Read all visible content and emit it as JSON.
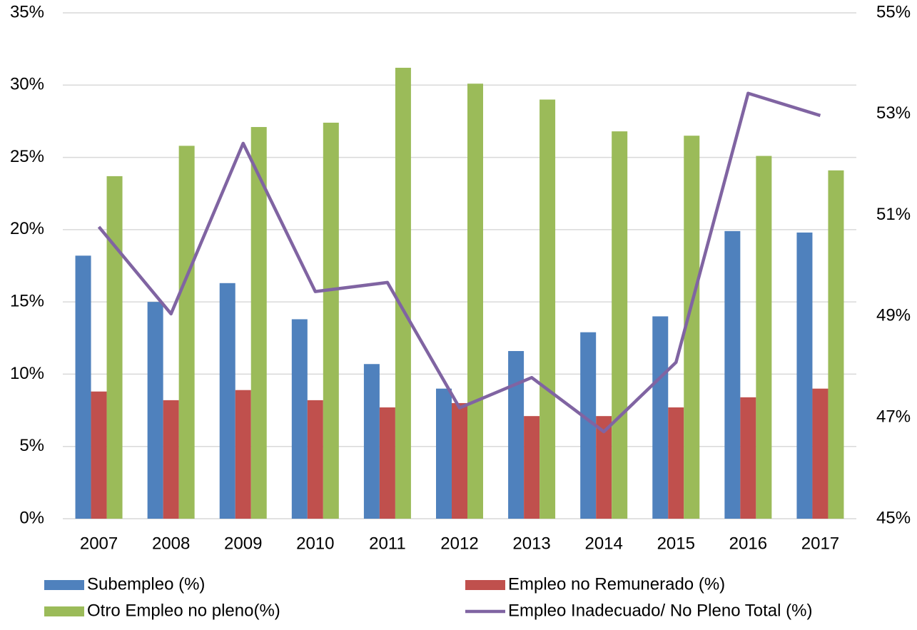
{
  "chart_data": {
    "type": "bar_line",
    "categories": [
      "2007",
      "2008",
      "2009",
      "2010",
      "2011",
      "2012",
      "2013",
      "2014",
      "2015",
      "2016",
      "2017"
    ],
    "series": [
      {
        "name": "Subempleo (%)",
        "color": "#4f81bd",
        "type": "bar",
        "values": [
          18.2,
          15.0,
          16.3,
          13.8,
          10.7,
          9.0,
          11.6,
          12.9,
          14.0,
          19.9,
          19.8
        ]
      },
      {
        "name": "Empleo no Remunerado (%)",
        "color": "#c0504d",
        "type": "bar",
        "values": [
          8.8,
          8.2,
          8.9,
          8.2,
          7.7,
          8.0,
          7.1,
          7.1,
          7.7,
          8.4,
          9.0
        ]
      },
      {
        "name": "Otro Empleo no pleno(%)",
        "color": "#9bbb59",
        "type": "bar",
        "values": [
          23.7,
          25.8,
          27.1,
          27.4,
          31.2,
          30.1,
          29.0,
          26.8,
          26.5,
          25.1,
          24.1
        ]
      },
      {
        "name": "Empleo Inadecuado/ No Pleno Total (%)",
        "color": "#8064a2",
        "type": "line",
        "axis": "y2",
        "values": [
          50.77,
          49.05,
          52.42,
          49.49,
          49.67,
          47.19,
          47.79,
          46.72,
          48.09,
          53.41,
          52.97
        ]
      }
    ],
    "ylim": [
      0,
      35
    ],
    "yticks": [
      {
        "value": 0,
        "label": "0%"
      },
      {
        "value": 5,
        "label": "5%"
      },
      {
        "value": 10,
        "label": "10%"
      },
      {
        "value": 15,
        "label": "15%"
      },
      {
        "value": 20,
        "label": "20%"
      },
      {
        "value": 25,
        "label": "25%"
      },
      {
        "value": 30,
        "label": "30%"
      },
      {
        "value": 35,
        "label": "35%"
      }
    ],
    "y2lim": [
      45,
      55
    ],
    "y2ticks": [
      {
        "value": 45,
        "label": "45%"
      },
      {
        "value": 47,
        "label": "47%"
      },
      {
        "value": 49,
        "label": "49%"
      },
      {
        "value": 51,
        "label": "51%"
      },
      {
        "value": 53,
        "label": "53%"
      },
      {
        "value": 55,
        "label": "55%"
      }
    ],
    "grid": true,
    "legend": "bottom"
  }
}
